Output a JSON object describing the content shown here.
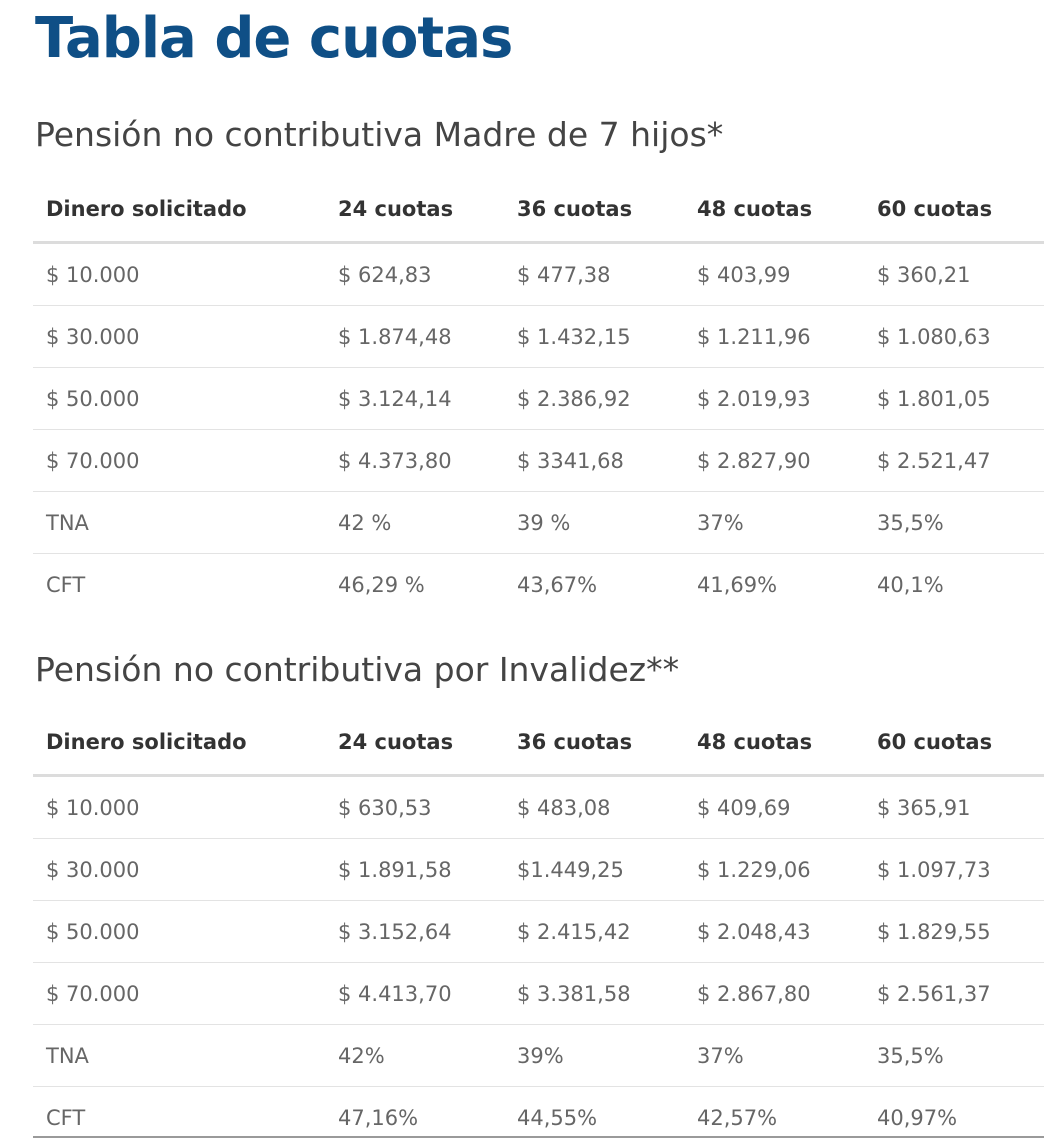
{
  "page": {
    "title": "Tabla de cuotas"
  },
  "sections": [
    {
      "title": "Pensión no contributiva Madre de 7 hijos*",
      "headers": [
        "Dinero solicitado",
        "24 cuotas",
        "36 cuotas",
        "48 cuotas",
        "60 cuotas"
      ],
      "rows": [
        [
          "$ 10.000",
          "$ 624,83",
          "$ 477,38",
          "$ 403,99",
          "$ 360,21"
        ],
        [
          "$ 30.000",
          "$ 1.874,48",
          "$ 1.432,15",
          "$ 1.211,96",
          "$ 1.080,63"
        ],
        [
          "$ 50.000",
          "$ 3.124,14",
          "$ 2.386,92",
          "$ 2.019,93",
          "$ 1.801,05"
        ],
        [
          "$ 70.000",
          "$ 4.373,80",
          "$ 3341,68",
          "$ 2.827,90",
          "$ 2.521,47"
        ],
        [
          "TNA",
          "42 %",
          "39 %",
          "37%",
          "35,5%"
        ],
        [
          "CFT",
          "46,29 %",
          "43,67%",
          "41,69%",
          "40,1%"
        ]
      ]
    },
    {
      "title": "Pensión no contributiva por Invalidez**",
      "headers": [
        "Dinero solicitado",
        "24 cuotas",
        "36 cuotas",
        "48 cuotas",
        "60 cuotas"
      ],
      "rows": [
        [
          "$ 10.000",
          "$ 630,53",
          "$ 483,08",
          "$ 409,69",
          "$ 365,91"
        ],
        [
          "$ 30.000",
          "$ 1.891,58",
          "$1.449,25",
          "$ 1.229,06",
          "$ 1.097,73"
        ],
        [
          "$ 50.000",
          "$ 3.152,64",
          "$ 2.415,42",
          "$ 2.048,43",
          "$ 1.829,55"
        ],
        [
          "$ 70.000",
          "$ 4.413,70",
          "$ 3.381,58",
          "$ 2.867,80",
          "$ 2.561,37"
        ],
        [
          "TNA",
          "42%",
          "39%",
          "37%",
          "35,5%"
        ],
        [
          "CFT",
          "47,16%",
          "44,55%",
          "42,57%",
          "40,97%"
        ]
      ]
    }
  ]
}
